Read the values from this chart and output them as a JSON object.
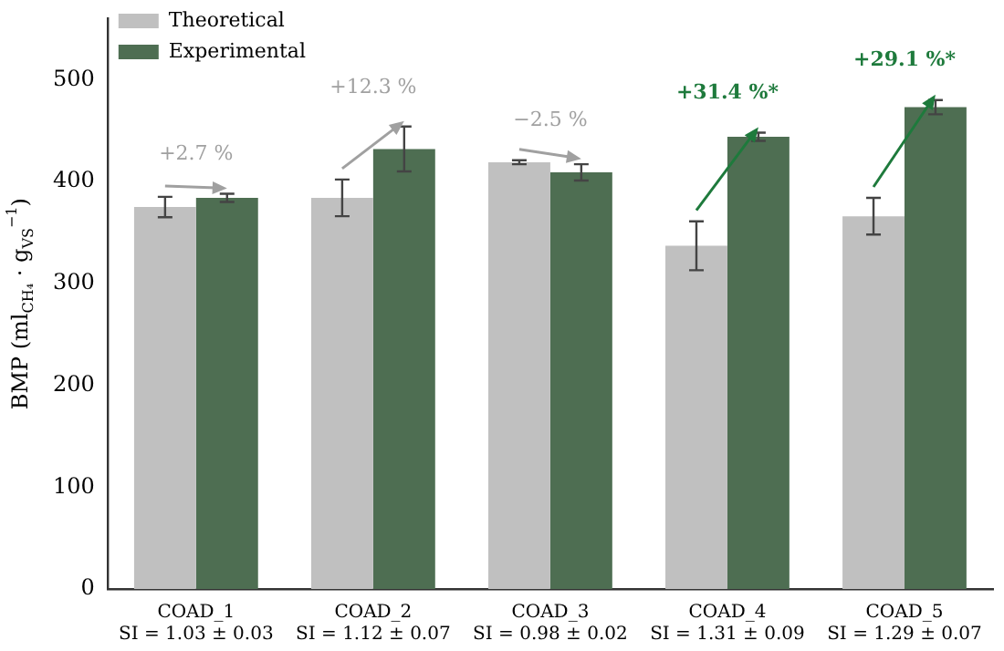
{
  "chart_data": {
    "type": "bar",
    "ylabel": "BMP (ml$_{CH₄}$ · g$_{VS}$$^{−1}$)",
    "categories": [
      "COAD_1\nSI = 1.03 ± 0.03",
      "COAD_2\nSI = 1.12 ± 0.07",
      "COAD_3\nSI = 0.98 ± 0.02",
      "COAD_4\nSI = 1.31 ± 0.09",
      "COAD_5\nSI = 1.29 ± 0.07"
    ],
    "series": [
      {
        "name": "Theoretical",
        "color": "#c0c0c0",
        "values": [
          375,
          384,
          419,
          337,
          366
        ],
        "errors": [
          10,
          18,
          2,
          24,
          18
        ]
      },
      {
        "name": "Experimental",
        "color": "#4e6e52",
        "values": [
          384,
          432,
          409,
          444,
          473
        ],
        "errors": [
          4,
          22,
          8,
          4,
          7
        ]
      }
    ],
    "ylim": [
      0,
      560
    ],
    "yticks": [
      0,
      100,
      200,
      300,
      400,
      500
    ],
    "grid": false,
    "legend": "top left",
    "annotations": [
      "+2.7 %",
      "+12.3 %",
      "−2.5 %",
      "+31.4 %*",
      "+29.1 %*"
    ]
  }
}
